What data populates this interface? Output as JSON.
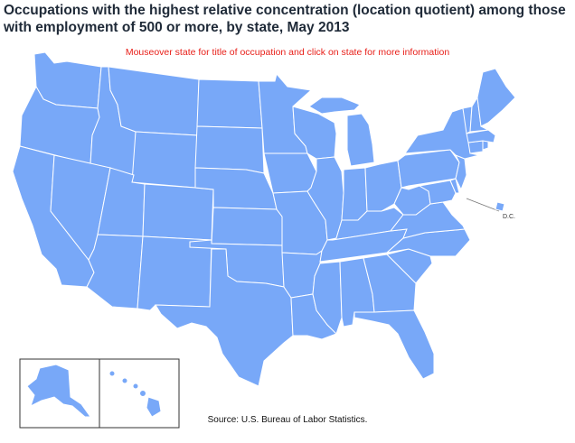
{
  "title_line1": "Occupations with the highest relative concentration (location quotient) among those",
  "title_line2": "with employment of 500 or more, by state, May 2013",
  "subtitle": "Mouseover state for title of occupation and click on state for more information",
  "dc_label": "D.C.",
  "source": "Source:  U.S. Bureau of Labor Statistics.",
  "colors": {
    "state_fill": "#78a8f8",
    "state_border": "#ffffff",
    "title": "#1f2a38",
    "subtitle": "#e8201a"
  },
  "states": [
    "WA",
    "OR",
    "CA",
    "ID",
    "NV",
    "MT",
    "WY",
    "UT",
    "AZ",
    "CO",
    "NM",
    "ND",
    "SD",
    "NE",
    "KS",
    "OK",
    "TX",
    "MN",
    "IA",
    "MO",
    "AR",
    "LA",
    "WI",
    "IL",
    "MI",
    "IN",
    "OH",
    "KY",
    "TN",
    "MS",
    "AL",
    "GA",
    "FL",
    "SC",
    "NC",
    "VA",
    "WV",
    "PA",
    "NY",
    "VT",
    "NH",
    "ME",
    "MA",
    "CT",
    "RI",
    "NJ",
    "DE",
    "MD",
    "DC",
    "AK",
    "HI"
  ]
}
